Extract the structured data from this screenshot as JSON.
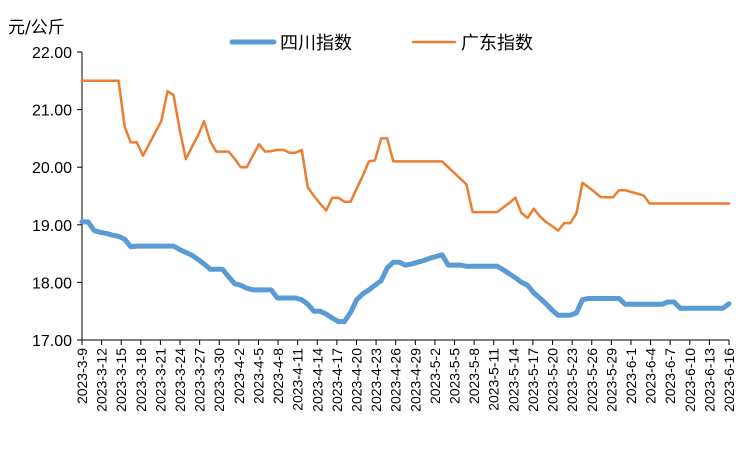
{
  "chart_data": {
    "type": "line",
    "ylabel": "元/公斤",
    "ylim": [
      17.0,
      22.0
    ],
    "y_ticks": [
      "17.00",
      "18.00",
      "19.00",
      "20.00",
      "21.00",
      "22.00"
    ],
    "legend_position": "top",
    "grid": false,
    "x_tick_labels": [
      "2023-3-9",
      "2023-3-12",
      "2023-3-15",
      "2023-3-18",
      "2023-3-21",
      "2023-3-24",
      "2023-3-27",
      "2023-3-30",
      "2023-4-2",
      "2023-4-5",
      "2023-4-8",
      "2023-4-11",
      "2023-4-14",
      "2023-4-17",
      "2023-4-20",
      "2023-4-23",
      "2023-4-26",
      "2023-4-29",
      "2023-5-2",
      "2023-5-5",
      "2023-5-8",
      "2023-5-11",
      "2023-5-14",
      "2023-5-17",
      "2023-5-20",
      "2023-5-23",
      "2023-5-26",
      "2023-5-29",
      "2023-6-1",
      "2023-6-4",
      "2023-6-7",
      "2023-6-10",
      "2023-6-13",
      "2023-6-16"
    ],
    "series": [
      {
        "name": "四川指数",
        "color": "#5B9BD5",
        "values": [
          19.05,
          19.05,
          18.9,
          18.87,
          18.85,
          18.82,
          18.8,
          18.75,
          18.62,
          18.63,
          18.63,
          18.63,
          18.63,
          18.63,
          18.63,
          18.63,
          18.57,
          18.52,
          18.47,
          18.4,
          18.32,
          18.23,
          18.23,
          18.23,
          18.1,
          17.98,
          17.95,
          17.9,
          17.87,
          17.87,
          17.87,
          17.87,
          17.73,
          17.73,
          17.73,
          17.73,
          17.7,
          17.62,
          17.5,
          17.5,
          17.45,
          17.38,
          17.32,
          17.32,
          17.48,
          17.7,
          17.8,
          17.87,
          17.95,
          18.03,
          18.25,
          18.35,
          18.35,
          18.3,
          18.32,
          18.35,
          18.38,
          18.42,
          18.45,
          18.48,
          18.3,
          18.3,
          18.3,
          18.28,
          18.28,
          18.28,
          18.28,
          18.28,
          18.28,
          18.22,
          18.15,
          18.08,
          18.0,
          17.95,
          17.82,
          17.73,
          17.63,
          17.52,
          17.43,
          17.43,
          17.43,
          17.47,
          17.7,
          17.72,
          17.72,
          17.72,
          17.72,
          17.72,
          17.72,
          17.62,
          17.62,
          17.62,
          17.62,
          17.62,
          17.62,
          17.62,
          17.66,
          17.66,
          17.55,
          17.55,
          17.55,
          17.55,
          17.55,
          17.55,
          17.55,
          17.55,
          17.63
        ]
      },
      {
        "name": "广东指数",
        "color": "#ED7D31",
        "values": [
          21.5,
          21.5,
          21.5,
          21.5,
          21.5,
          21.5,
          21.5,
          20.7,
          20.43,
          20.43,
          20.2,
          20.4,
          20.6,
          20.8,
          21.32,
          21.25,
          20.65,
          20.14,
          20.35,
          20.55,
          20.8,
          20.45,
          20.27,
          20.27,
          20.27,
          20.15,
          20.0,
          20.0,
          20.2,
          20.4,
          20.27,
          20.28,
          20.3,
          20.3,
          20.25,
          20.25,
          20.3,
          19.65,
          19.5,
          19.37,
          19.25,
          19.47,
          19.47,
          19.4,
          19.4,
          19.63,
          19.85,
          20.1,
          20.12,
          20.5,
          20.5,
          20.1,
          20.1,
          20.1,
          20.1,
          20.1,
          20.1,
          20.1,
          20.1,
          20.1,
          20.0,
          19.9,
          19.8,
          19.7,
          19.22,
          19.22,
          19.22,
          19.22,
          19.22,
          19.3,
          19.38,
          19.47,
          19.2,
          19.12,
          19.28,
          19.15,
          19.05,
          18.98,
          18.9,
          19.03,
          19.03,
          19.2,
          19.73,
          19.65,
          19.57,
          19.48,
          19.48,
          19.48,
          19.6,
          19.6,
          19.57,
          19.54,
          19.51,
          19.37,
          19.37,
          19.37,
          19.37,
          19.37,
          19.37,
          19.37,
          19.37,
          19.37,
          19.37,
          19.37,
          19.37,
          19.37,
          19.37
        ]
      }
    ]
  }
}
